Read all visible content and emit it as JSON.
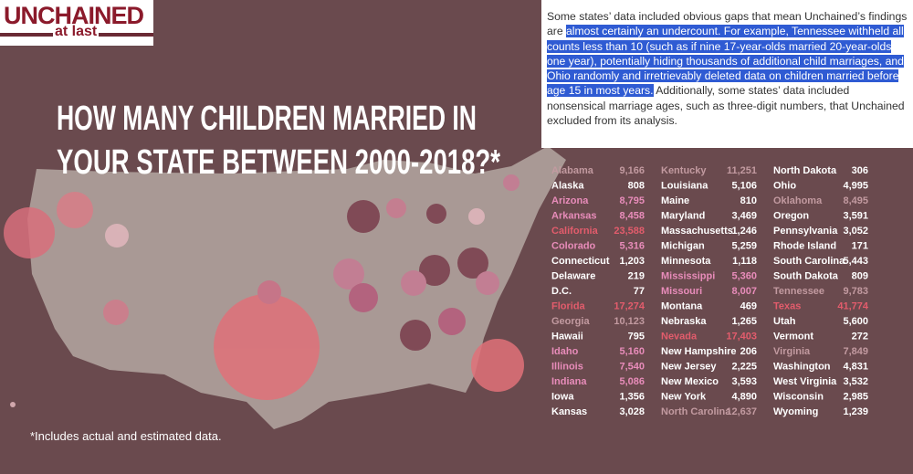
{
  "logo": {
    "top": "UNCHAINED",
    "bottom": "at last"
  },
  "article": {
    "before": "Some states’ data included obvious gaps that mean Unchained’s findings are ",
    "highlight": "almost certainly an undercount. For example, Tennessee withheld all counts less than 10 (such as if nine 17-year-olds married 20-year-olds one year), potentially hiding thousands of additional child marriages, and Ohio randomly and irretrievably deleted data on children married before age 15 in most years.",
    "after": " Additionally, some states’ data included nonsensical marriage ages, such as three-digit numbers, that Unchained excluded from its analysis."
  },
  "infographic": {
    "title_lines": [
      "HOW MANY CHILDREN MARRIED IN",
      "YOUR STATE BETWEEN 2000-2018?*"
    ],
    "footnote": "*Includes actual and estimated data.",
    "columns": [
      [
        {
          "state": "Alabama",
          "count": "9,166",
          "color": "#c29aa0"
        },
        {
          "state": "Alaska",
          "count": "808",
          "color": "#ffffff"
        },
        {
          "state": "Arizona",
          "count": "8,795",
          "color": "#e88cba"
        },
        {
          "state": "Arkansas",
          "count": "8,458",
          "color": "#e88cba"
        },
        {
          "state": "California",
          "count": "23,588",
          "color": "#e35c6c"
        },
        {
          "state": "Colorado",
          "count": "5,316",
          "color": "#e88cba"
        },
        {
          "state": "Connecticut",
          "count": "1,203",
          "color": "#ffffff"
        },
        {
          "state": "Delaware",
          "count": "219",
          "color": "#ffffff"
        },
        {
          "state": "D.C.",
          "count": "77",
          "color": "#ffffff"
        },
        {
          "state": "Florida",
          "count": "17,274",
          "color": "#e35c6c"
        },
        {
          "state": "Georgia",
          "count": "10,123",
          "color": "#c29aa0"
        },
        {
          "state": "Hawaii",
          "count": "795",
          "color": "#ffffff"
        },
        {
          "state": "Idaho",
          "count": "5,160",
          "color": "#e88cba"
        },
        {
          "state": "Illinois",
          "count": "7,540",
          "color": "#e88cba"
        },
        {
          "state": "Indiana",
          "count": "5,086",
          "color": "#e88cba"
        },
        {
          "state": "Iowa",
          "count": "1,356",
          "color": "#ffffff"
        },
        {
          "state": "Kansas",
          "count": "3,028",
          "color": "#ffffff"
        }
      ],
      [
        {
          "state": "Kentucky",
          "count": "11,251",
          "color": "#c29aa0"
        },
        {
          "state": "Louisiana",
          "count": "5,106",
          "color": "#ffffff"
        },
        {
          "state": "Maine",
          "count": "810",
          "color": "#ffffff"
        },
        {
          "state": "Maryland",
          "count": "3,469",
          "color": "#ffffff"
        },
        {
          "state": "Massachusetts",
          "count": "1,246",
          "color": "#ffffff"
        },
        {
          "state": "Michigan",
          "count": "5,259",
          "color": "#ffffff"
        },
        {
          "state": "Minnesota",
          "count": "1,118",
          "color": "#ffffff"
        },
        {
          "state": "Mississippi",
          "count": "5,360",
          "color": "#e88cba"
        },
        {
          "state": "Missouri",
          "count": "8,007",
          "color": "#e88cba"
        },
        {
          "state": "Montana",
          "count": "469",
          "color": "#ffffff"
        },
        {
          "state": "Nebraska",
          "count": "1,265",
          "color": "#ffffff"
        },
        {
          "state": "Nevada",
          "count": "17,403",
          "color": "#e35c6c"
        },
        {
          "state": "New Hampshire",
          "count": "206",
          "color": "#ffffff"
        },
        {
          "state": "New Jersey",
          "count": "2,225",
          "color": "#ffffff"
        },
        {
          "state": "New Mexico",
          "count": "3,593",
          "color": "#ffffff"
        },
        {
          "state": "New York",
          "count": "4,890",
          "color": "#ffffff"
        },
        {
          "state": "North Carolina",
          "count": "12,637",
          "color": "#c29aa0"
        }
      ],
      [
        {
          "state": "North Dakota",
          "count": "306",
          "color": "#ffffff"
        },
        {
          "state": "Ohio",
          "count": "4,995",
          "color": "#ffffff"
        },
        {
          "state": "Oklahoma",
          "count": "8,495",
          "color": "#c29aa0"
        },
        {
          "state": "Oregon",
          "count": "3,591",
          "color": "#ffffff"
        },
        {
          "state": "Pennsylvania",
          "count": "3,052",
          "color": "#ffffff"
        },
        {
          "state": "Rhode Island",
          "count": "171",
          "color": "#ffffff"
        },
        {
          "state": "South Carolina",
          "count": "5,443",
          "color": "#ffffff"
        },
        {
          "state": "South Dakota",
          "count": "809",
          "color": "#ffffff"
        },
        {
          "state": "Tennessee",
          "count": "9,783",
          "color": "#c29aa0"
        },
        {
          "state": "Texas",
          "count": "41,774",
          "color": "#e35c6c"
        },
        {
          "state": "Utah",
          "count": "5,600",
          "color": "#ffffff"
        },
        {
          "state": "Vermont",
          "count": "272",
          "color": "#ffffff"
        },
        {
          "state": "Virginia",
          "count": "7,849",
          "color": "#c29aa0"
        },
        {
          "state": "Washington",
          "count": "4,831",
          "color": "#ffffff"
        },
        {
          "state": "West Virginia",
          "count": "3,532",
          "color": "#ffffff"
        },
        {
          "state": "Wisconsin",
          "count": "2,985",
          "color": "#ffffff"
        },
        {
          "state": "Wyoming",
          "count": "1,239",
          "color": "#ffffff"
        }
      ]
    ]
  }
}
